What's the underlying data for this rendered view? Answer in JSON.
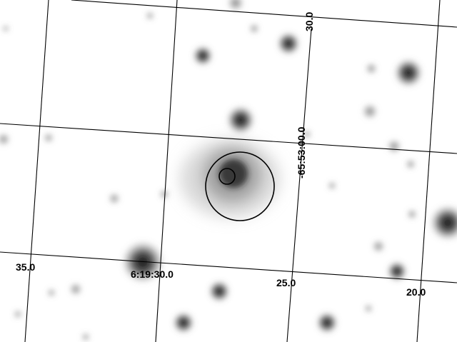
{
  "image": {
    "description_free": true,
    "background": "#ffffff",
    "line_color": "#000000"
  },
  "coordinate_labels": {
    "ra_35": "35.0",
    "ra_hms": "6:19:30.0",
    "ra_25": "25.0",
    "ra_20": "20.0",
    "dec_30": "30.0",
    "dec_dms": "-65:53:00.0"
  }
}
